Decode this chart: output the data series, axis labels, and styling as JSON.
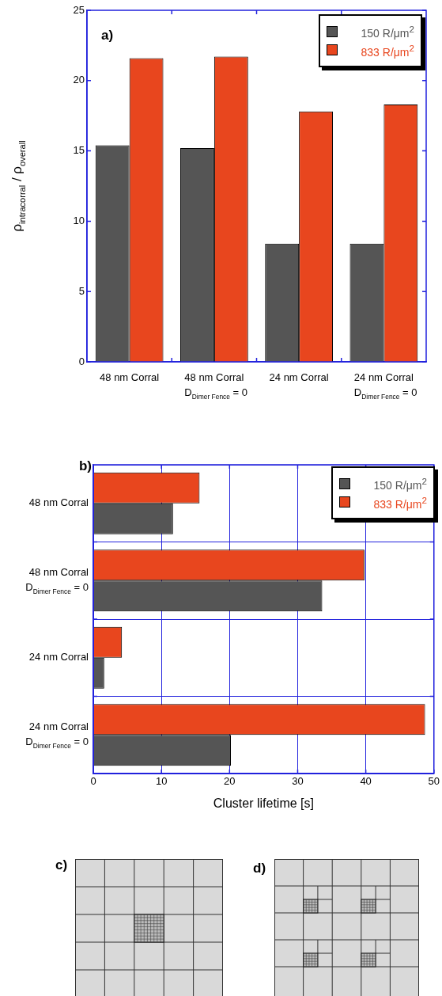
{
  "chart_data": [
    {
      "type": "bar",
      "title": "a)",
      "ylabel": "ρ$_{intracorral}$ / ρ$_{overall}$",
      "categories": [
        "48 nm Corral",
        "48 nm Corral D$_{Dimer Fence}$ = 0",
        "24 nm Corral",
        "24 nm Corral D$_{Dimer Fence}$ = 0"
      ],
      "series": [
        {
          "name": "150 R/μm$^{2}$",
          "color": "#555555",
          "values": [
            15.4,
            15.2,
            8.4,
            8.4
          ]
        },
        {
          "name": "833 R/μm$^{2}$",
          "color": "#e8461e",
          "values": [
            21.6,
            21.7,
            17.8,
            18.3
          ]
        }
      ],
      "ylim": [
        0,
        25
      ],
      "yticks": [
        0,
        5,
        10,
        15,
        20,
        25
      ],
      "grid": false,
      "legend": "top right"
    },
    {
      "type": "bar",
      "title": "b)",
      "xlabel": "Cluster lifetime [s]",
      "orientation": "horizontal",
      "categories": [
        "48 nm Corral",
        "48 nm Corral D$_{Dimer Fence}$ = 0",
        "24 nm Corral",
        "24 nm Corral D$_{Dimer Fence}$ = 0"
      ],
      "series": [
        {
          "name": "150 R/μm$^{2}$",
          "color": "#555555",
          "values": [
            11.7,
            33.6,
            1.6,
            20.2
          ]
        },
        {
          "name": "833 R/μm$^{2}$",
          "color": "#e8461e",
          "values": [
            15.6,
            39.8,
            4.2,
            48.7
          ]
        }
      ],
      "xlim": [
        0,
        50
      ],
      "xticks": [
        0,
        10,
        20,
        30,
        40,
        50
      ],
      "grid": true,
      "legend": "top right"
    },
    {
      "type": "other",
      "title": "c)"
    },
    {
      "type": "other",
      "title": "d)"
    }
  ]
}
